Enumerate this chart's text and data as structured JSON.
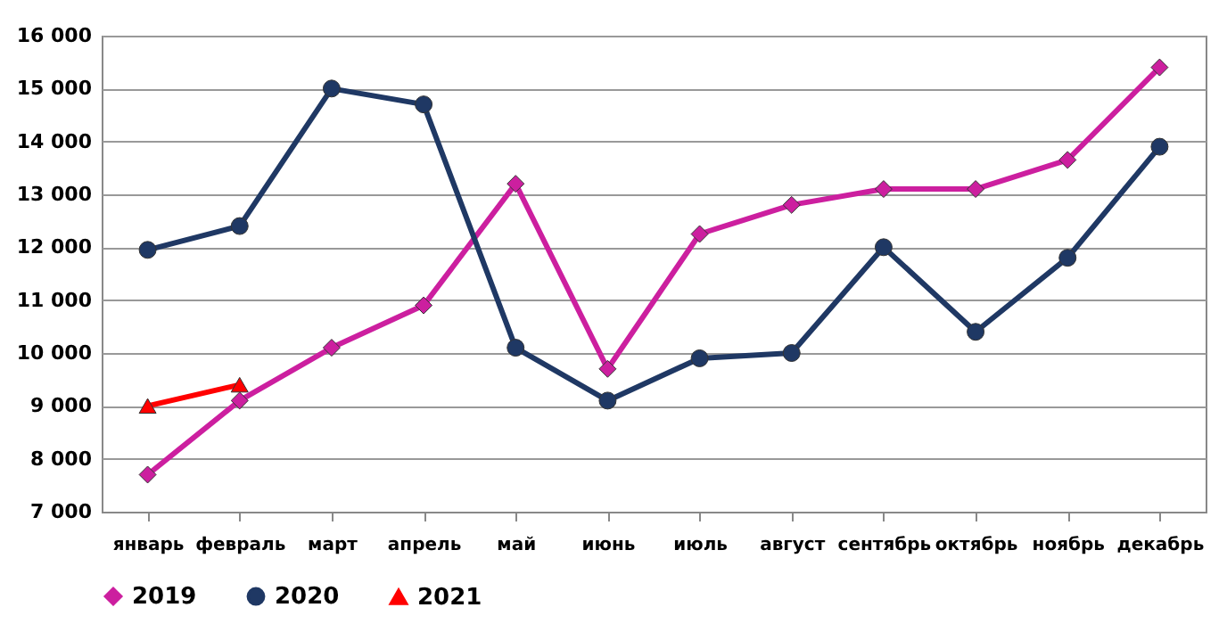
{
  "chart_data": {
    "type": "line",
    "categories": [
      "январь",
      "февраль",
      "март",
      "апрель",
      "май",
      "июнь",
      "июль",
      "август",
      "сентябрь",
      "октябрь",
      "ноябрь",
      "декабрь"
    ],
    "series": [
      {
        "name": "2019",
        "color": "#cc1f9f",
        "marker": "diamond",
        "values": [
          7700,
          9100,
          10100,
          10900,
          13200,
          9700,
          12250,
          12800,
          13100,
          13100,
          13650,
          15400
        ]
      },
      {
        "name": "2020",
        "color": "#1f3864",
        "marker": "circle",
        "values": [
          11950,
          12400,
          15000,
          14700,
          10100,
          9100,
          9900,
          10000,
          12000,
          10400,
          11800,
          13900
        ]
      },
      {
        "name": "2021",
        "color": "#ff0000",
        "marker": "triangle",
        "values": [
          9000,
          9400,
          null,
          null,
          null,
          null,
          null,
          null,
          null,
          null,
          null,
          null
        ]
      }
    ],
    "ylim": [
      7000,
      16000
    ],
    "yticks": [
      {
        "value": 7000,
        "label": "7 000"
      },
      {
        "value": 8000,
        "label": "8 000"
      },
      {
        "value": 9000,
        "label": "9 000"
      },
      {
        "value": 10000,
        "label": "10 000"
      },
      {
        "value": 11000,
        "label": "11 000"
      },
      {
        "value": 12000,
        "label": "12 000"
      },
      {
        "value": 13000,
        "label": "13 000"
      },
      {
        "value": 14000,
        "label": "14 000"
      },
      {
        "value": 15000,
        "label": "15 000"
      },
      {
        "value": 16000,
        "label": "16 000"
      }
    ],
    "grid": "y",
    "legend": "bottom",
    "line_style": "solid"
  }
}
